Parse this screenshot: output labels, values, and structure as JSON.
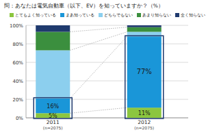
{
  "chart_data": {
    "type": "bar",
    "stacked": true,
    "title": "問：あなたは電気自動車（以下、EV）を知っていますか？（%）",
    "categories": [
      "2011",
      "2012"
    ],
    "annotations": [
      "(n=2075)",
      "(n=2075)"
    ],
    "series": [
      {
        "name": "とてもよく知っている",
        "color": "#8cc63f",
        "values": [
          5,
          11
        ],
        "value_labels": [
          "5%",
          "11%"
        ]
      },
      {
        "name": "まあ知っている",
        "color": "#1a96d8",
        "values": [
          16,
          77
        ],
        "value_labels": [
          "16%",
          "77%"
        ]
      },
      {
        "name": "どちらでもない",
        "color": "#8ccfee",
        "values": [
          52,
          5
        ],
        "value_labels": [
          null,
          null
        ]
      },
      {
        "name": "あまり知らない",
        "color": "#3b8f3e",
        "values": [
          20,
          5
        ],
        "value_labels": [
          null,
          null
        ]
      },
      {
        "name": "全く知らない",
        "color": "#1f3a6e",
        "values": [
          7,
          2
        ],
        "value_labels": [
          null,
          null
        ]
      }
    ],
    "ylim": [
      0,
      100
    ],
    "yticks": [
      {
        "value": 0,
        "label": "0%"
      },
      {
        "value": 20,
        "label": "20%"
      },
      {
        "value": 40,
        "label": "40%"
      },
      {
        "value": 60,
        "label": "60%"
      },
      {
        "value": 80,
        "label": "80%"
      },
      {
        "value": 100,
        "label": "100%"
      }
    ],
    "grid": true,
    "legend": "top",
    "data_labels": true
  }
}
